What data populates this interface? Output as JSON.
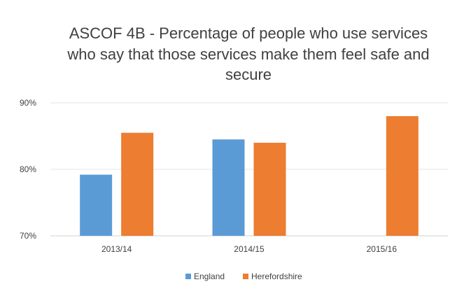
{
  "chart_data": {
    "type": "bar",
    "title_lines": [
      "ASCOF 4B - Percentage of people who use services",
      "who say that those services make them feel safe and",
      "secure"
    ],
    "categories": [
      "2013/14",
      "2014/15",
      "2015/16"
    ],
    "series": [
      {
        "name": "England",
        "color": "#5b9bd5",
        "values": [
          79.2,
          84.5,
          null
        ]
      },
      {
        "name": "Herefordshire",
        "color": "#ed7d31",
        "values": [
          85.5,
          84.0,
          88.0
        ]
      }
    ],
    "ylim": [
      70,
      90
    ],
    "yticks": [
      70,
      80,
      90
    ],
    "ytick_labels": [
      "70%",
      "80%",
      "90%"
    ],
    "grid": true,
    "legend_position": "bottom"
  }
}
